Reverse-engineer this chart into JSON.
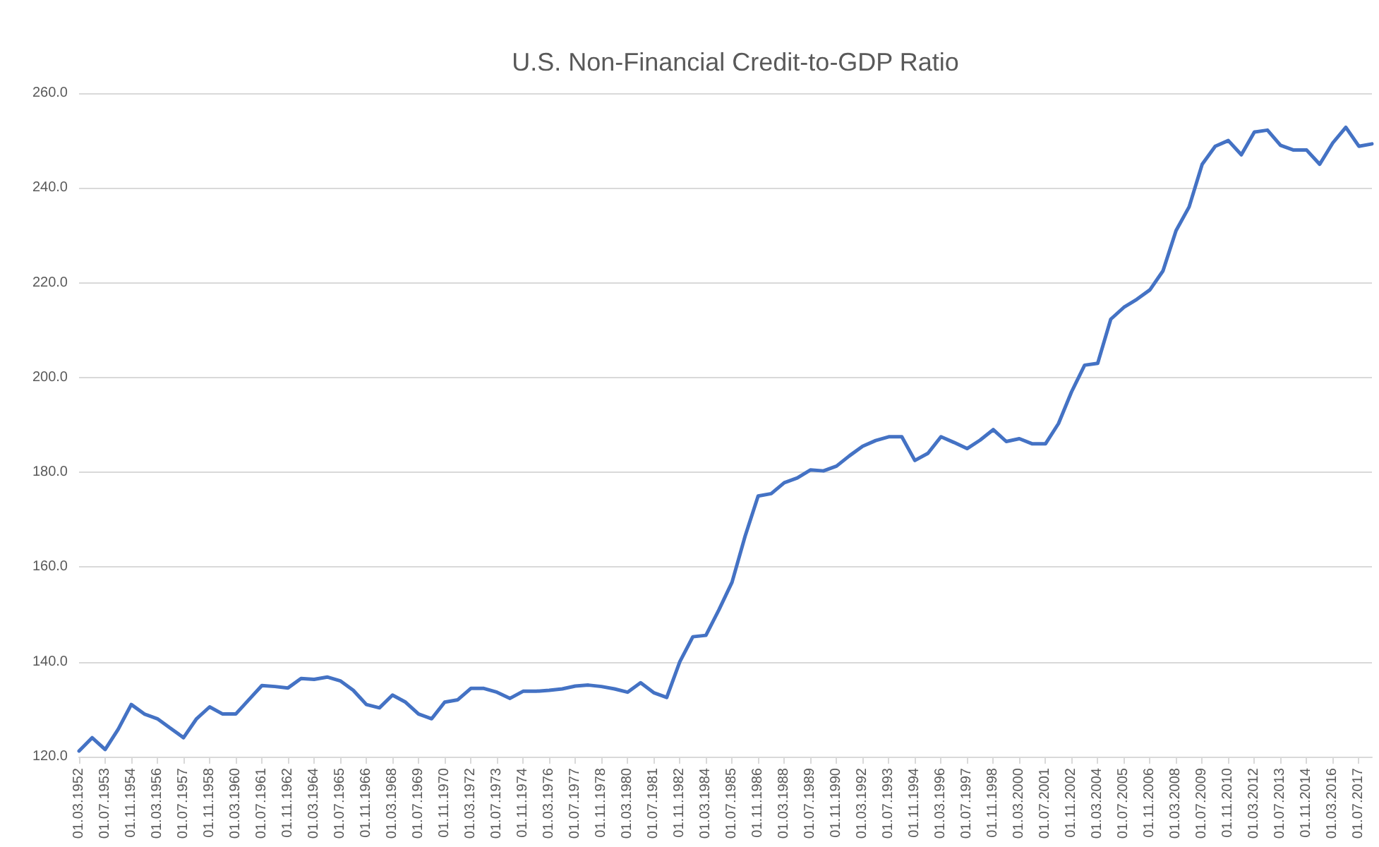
{
  "chart_data": {
    "type": "line",
    "title": "U.S. Non-Financial Credit-to-GDP Ratio",
    "categories": [
      "01.03.1952",
      null,
      "01.07.1953",
      null,
      "01.11.1954",
      null,
      "01.03.1956",
      null,
      "01.07.1957",
      null,
      "01.11.1958",
      null,
      "01.03.1960",
      null,
      "01.07.1961",
      null,
      "01.11.1962",
      null,
      "01.03.1964",
      null,
      "01.07.1965",
      null,
      "01.11.1966",
      null,
      "01.03.1968",
      null,
      "01.07.1969",
      null,
      "01.11.1970",
      null,
      "01.03.1972",
      null,
      "01.07.1973",
      null,
      "01.11.1974",
      null,
      "01.03.1976",
      null,
      "01.07.1977",
      null,
      "01.11.1978",
      null,
      "01.03.1980",
      null,
      "01.07.1981",
      null,
      "01.11.1982",
      null,
      "01.03.1984",
      null,
      "01.07.1985",
      null,
      "01.11.1986",
      null,
      "01.03.1988",
      null,
      "01.07.1989",
      null,
      "01.11.1990",
      null,
      "01.03.1992",
      null,
      "01.07.1993",
      null,
      "01.11.1994",
      null,
      "01.03.1996",
      null,
      "01.07.1997",
      null,
      "01.11.1998",
      null,
      "01.03.2000",
      null,
      "01.07.2001",
      null,
      "01.11.2002",
      null,
      "01.03.2004",
      null,
      "01.07.2005",
      null,
      "01.11.2006",
      null,
      "01.03.2008",
      null,
      "01.07.2009",
      null,
      "01.11.2010",
      null,
      "01.03.2012",
      null,
      "01.07.2013",
      null,
      "01.11.2014",
      null,
      "01.03.2016",
      null,
      "01.07.2017",
      null
    ],
    "series": [
      {
        "color": "#4472c4",
        "values": [
          121.2,
          124,
          121.5,
          125.8,
          131,
          129,
          128,
          126,
          124,
          128,
          130.5,
          129,
          129,
          132,
          135,
          134.8,
          134.5,
          136.5,
          136.3,
          136.8,
          136,
          134,
          131,
          130.3,
          133,
          131.5,
          129,
          128,
          131.5,
          132,
          134.4,
          134.4,
          133.6,
          132.3,
          133.8,
          133.8,
          134,
          134.3,
          134.9,
          135.1,
          134.8,
          134.3,
          133.6,
          135.6,
          133.5,
          132.5,
          140,
          145.3,
          145.6,
          151,
          156.8,
          166.5,
          175,
          175.5,
          177.8,
          178.8,
          180.5,
          180.3,
          181.3,
          183.5,
          185.5,
          186.7,
          187.5,
          187.5,
          182.5,
          184,
          187.5,
          186.3,
          185,
          186.8,
          189,
          186.5,
          187.1,
          186,
          186,
          190.3,
          197,
          202.6,
          203,
          212.3,
          214.8,
          216.5,
          218.5,
          222.5,
          231,
          236,
          245,
          248.8,
          250,
          247,
          251.8,
          252.2,
          249,
          248,
          248,
          245,
          249.5,
          252.8,
          248.8,
          249.3
        ]
      }
    ],
    "ylim": [
      120,
      260
    ],
    "yticks": [
      {
        "value": 120,
        "label": "120.0"
      },
      {
        "value": 140,
        "label": "140.0"
      },
      {
        "value": 160,
        "label": "160.0"
      },
      {
        "value": 180,
        "label": "180.0"
      },
      {
        "value": 200,
        "label": "200.0"
      },
      {
        "value": 220,
        "label": "220.0"
      },
      {
        "value": 240,
        "label": "240.0"
      },
      {
        "value": 260,
        "label": "260.0"
      }
    ],
    "grid": "y",
    "marker": "none",
    "line_style": "solid"
  }
}
